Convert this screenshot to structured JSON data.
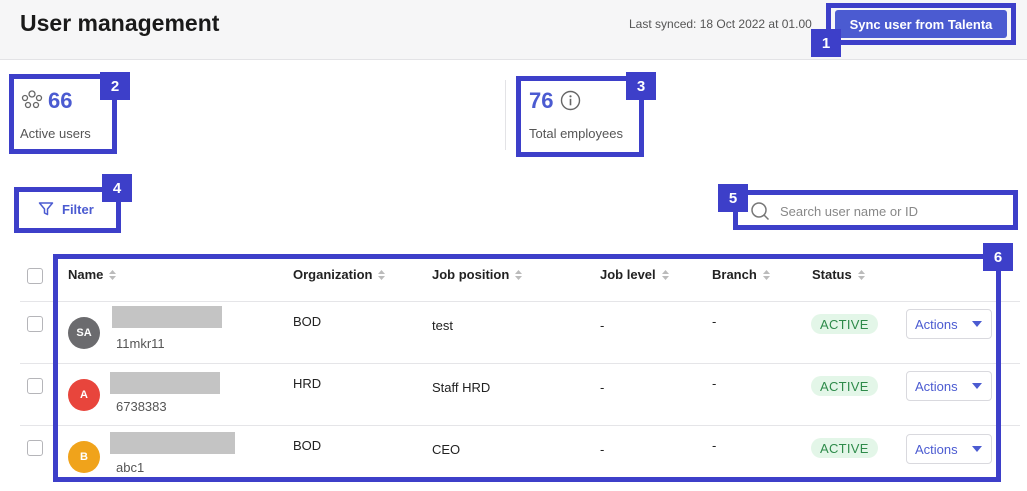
{
  "header": {
    "title": "User management",
    "last_synced": "Last synced: 18 Oct 2022 at 01.00",
    "sync_button": "Sync user from Talenta"
  },
  "stats": {
    "active_users": {
      "value": "66",
      "label": "Active users",
      "icon": "users-icon"
    },
    "total_employees": {
      "value": "76",
      "label": "Total employees",
      "icon": "info-icon"
    }
  },
  "toolbar": {
    "filter_label": "Filter",
    "search_placeholder": "Search user name or ID"
  },
  "table": {
    "columns": [
      "Name",
      "Organization",
      "Job position",
      "Job level",
      "Branch",
      "Status"
    ],
    "rows": [
      {
        "initials": "SA",
        "avatar_color": "#6b6b6e",
        "id": "11mkr11",
        "organization": "BOD",
        "job_position": "test",
        "job_level": "-",
        "branch": "-",
        "status": "ACTIVE",
        "actions": "Actions"
      },
      {
        "initials": "A",
        "avatar_color": "#e8453c",
        "id": "6738383",
        "organization": "HRD",
        "job_position": "Staff HRD",
        "job_level": "-",
        "branch": "-",
        "status": "ACTIVE",
        "actions": "Actions"
      },
      {
        "initials": "B",
        "avatar_color": "#f0a31b",
        "id": "abc1",
        "organization": "BOD",
        "job_position": "CEO",
        "job_level": "-",
        "branch": "-",
        "status": "ACTIVE",
        "actions": "Actions"
      }
    ]
  },
  "annotations": [
    "1",
    "2",
    "3",
    "4",
    "5",
    "6"
  ],
  "colors": {
    "accent": "#4b5bd1",
    "annotation": "#3d3fc9",
    "status_active_bg": "#e3f6e8",
    "status_active_text": "#2e8b4a"
  }
}
